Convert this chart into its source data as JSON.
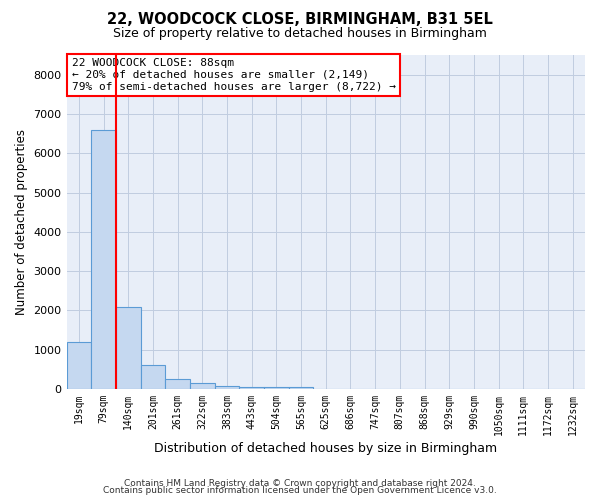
{
  "title1": "22, WOODCOCK CLOSE, BIRMINGHAM, B31 5EL",
  "title2": "Size of property relative to detached houses in Birmingham",
  "xlabel": "Distribution of detached houses by size in Birmingham",
  "ylabel": "Number of detached properties",
  "bin_labels": [
    "19sqm",
    "79sqm",
    "140sqm",
    "201sqm",
    "261sqm",
    "322sqm",
    "383sqm",
    "443sqm",
    "504sqm",
    "565sqm",
    "625sqm",
    "686sqm",
    "747sqm",
    "807sqm",
    "868sqm",
    "929sqm",
    "990sqm",
    "1050sqm",
    "1111sqm",
    "1172sqm",
    "1232sqm"
  ],
  "values": [
    1200,
    6600,
    2100,
    600,
    250,
    150,
    90,
    50,
    50,
    50,
    0,
    0,
    0,
    0,
    0,
    0,
    0,
    0,
    0,
    0,
    0
  ],
  "bar_color": "#c5d8f0",
  "bar_edge_color": "#5b9bd5",
  "red_line_bin_index": 1,
  "ylim": [
    0,
    8500
  ],
  "yticks": [
    0,
    1000,
    2000,
    3000,
    4000,
    5000,
    6000,
    7000,
    8000
  ],
  "annotation_text": "22 WOODCOCK CLOSE: 88sqm\n← 20% of detached houses are smaller (2,149)\n79% of semi-detached houses are larger (8,722) →",
  "footer1": "Contains HM Land Registry data © Crown copyright and database right 2024.",
  "footer2": "Contains public sector information licensed under the Open Government Licence v3.0.",
  "background_color": "#ffffff",
  "plot_bg_color": "#e8eef8",
  "grid_color": "#c0cce0"
}
